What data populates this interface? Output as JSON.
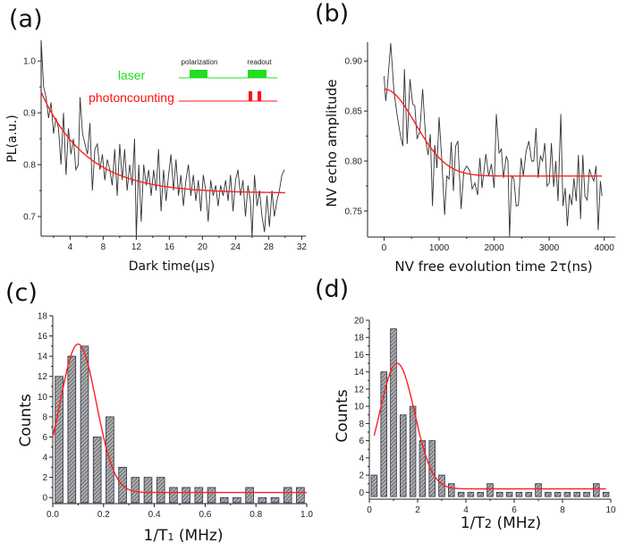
{
  "colors": {
    "data_line": "#333333",
    "fit_line": "#ff2020",
    "laser": "#22dd22",
    "photoncounting": "#ff1010",
    "bar_fill": "#8a8a8a",
    "bar_edge": "#2a3050"
  },
  "chart_data": [
    {
      "panel_label": "(a)",
      "type": "line",
      "xlabel": "Dark time(μs)",
      "ylabel": "PL(a.u.)",
      "xlim": [
        0.5,
        32.5
      ],
      "ylim": [
        0.662,
        1.04
      ],
      "xticks": [
        4,
        8,
        12,
        16,
        20,
        24,
        28,
        32
      ],
      "yticks": [
        0.7,
        0.8,
        0.9,
        1.0
      ],
      "ytick_labels": [
        "0.7",
        "0.8",
        "0.9",
        "1.0"
      ],
      "grid": false,
      "inset": {
        "laser_label": "laser",
        "photoncounting_label": "photoncounting",
        "polarization_label": "polarization",
        "readout_label": "readout"
      },
      "fit": {
        "model": "exponential decay",
        "offset": 0.745,
        "amplitude": 0.195,
        "x0": 0.5,
        "tau": 5.5,
        "x_range": [
          0.5,
          30
        ]
      },
      "series": [
        {
          "points": [
            [
              0.5,
              1.04
            ],
            [
              0.8,
              0.95
            ],
            [
              1.1,
              0.93
            ],
            [
              1.4,
              0.89
            ],
            [
              1.7,
              0.92
            ],
            [
              2.0,
              0.86
            ],
            [
              2.3,
              0.89
            ],
            [
              2.6,
              0.87
            ],
            [
              2.9,
              0.8
            ],
            [
              3.2,
              0.9
            ],
            [
              3.5,
              0.78
            ],
            [
              3.8,
              0.87
            ],
            [
              4.1,
              0.82
            ],
            [
              4.4,
              0.85
            ],
            [
              4.7,
              0.79
            ],
            [
              5.0,
              0.8
            ],
            [
              5.2,
              0.93
            ],
            [
              5.5,
              0.86
            ],
            [
              5.8,
              0.84
            ],
            [
              6.1,
              0.82
            ],
            [
              6.4,
              0.88
            ],
            [
              6.7,
              0.75
            ],
            [
              7.0,
              0.83
            ],
            [
              7.3,
              0.84
            ],
            [
              7.6,
              0.79
            ],
            [
              7.9,
              0.82
            ],
            [
              8.2,
              0.77
            ],
            [
              8.5,
              0.81
            ],
            [
              8.8,
              0.79
            ],
            [
              9.1,
              0.76
            ],
            [
              9.4,
              0.83
            ],
            [
              9.7,
              0.74
            ],
            [
              10.0,
              0.84
            ],
            [
              10.3,
              0.77
            ],
            [
              10.6,
              0.83
            ],
            [
              10.9,
              0.75
            ],
            [
              11.2,
              0.8
            ],
            [
              11.5,
              0.76
            ],
            [
              11.8,
              0.85
            ],
            [
              12.0,
              0.66
            ],
            [
              12.3,
              0.8
            ],
            [
              12.6,
              0.69
            ],
            [
              12.9,
              0.8
            ],
            [
              13.2,
              0.76
            ],
            [
              13.5,
              0.79
            ],
            [
              13.8,
              0.74
            ],
            [
              14.1,
              0.79
            ],
            [
              14.4,
              0.75
            ],
            [
              14.7,
              0.83
            ],
            [
              15.0,
              0.71
            ],
            [
              15.3,
              0.79
            ],
            [
              15.6,
              0.73
            ],
            [
              15.9,
              0.78
            ],
            [
              16.2,
              0.82
            ],
            [
              16.5,
              0.75
            ],
            [
              16.8,
              0.81
            ],
            [
              17.1,
              0.74
            ],
            [
              17.4,
              0.78
            ],
            [
              17.7,
              0.72
            ],
            [
              18.0,
              0.77
            ],
            [
              18.3,
              0.8
            ],
            [
              18.6,
              0.74
            ],
            [
              18.9,
              0.78
            ],
            [
              19.2,
              0.73
            ],
            [
              19.5,
              0.77
            ],
            [
              19.8,
              0.71
            ],
            [
              20.1,
              0.78
            ],
            [
              20.4,
              0.75
            ],
            [
              20.7,
              0.69
            ],
            [
              21.0,
              0.77
            ],
            [
              21.3,
              0.74
            ],
            [
              21.6,
              0.76
            ],
            [
              21.9,
              0.72
            ],
            [
              22.2,
              0.76
            ],
            [
              22.5,
              0.74
            ],
            [
              22.8,
              0.77
            ],
            [
              23.1,
              0.73
            ],
            [
              23.4,
              0.78
            ],
            [
              23.7,
              0.71
            ],
            [
              24.0,
              0.77
            ],
            [
              24.3,
              0.79
            ],
            [
              24.6,
              0.74
            ],
            [
              24.9,
              0.77
            ],
            [
              25.2,
              0.7
            ],
            [
              25.5,
              0.76
            ],
            [
              25.8,
              0.73
            ],
            [
              26.0,
              0.66
            ],
            [
              26.3,
              0.78
            ],
            [
              26.6,
              0.72
            ],
            [
              26.9,
              0.75
            ],
            [
              27.2,
              0.7
            ],
            [
              27.5,
              0.67
            ],
            [
              27.8,
              0.74
            ],
            [
              28.1,
              0.68
            ],
            [
              28.4,
              0.75
            ],
            [
              28.7,
              0.7
            ],
            [
              29.0,
              0.73
            ],
            [
              29.3,
              0.75
            ],
            [
              29.6,
              0.78
            ],
            [
              29.9,
              0.79
            ]
          ]
        }
      ]
    },
    {
      "panel_label": "(b)",
      "type": "line",
      "xlabel": "NV free evolution time 2τ(ns)",
      "ylabel": "NV echo amplitude",
      "xlim": [
        -300,
        4200
      ],
      "ylim": [
        0.724,
        0.919
      ],
      "xticks": [
        0,
        1000,
        2000,
        3000,
        4000
      ],
      "yticks": [
        0.75,
        0.8,
        0.85,
        0.9
      ],
      "ytick_labels": [
        "0.75",
        "0.80",
        "0.85",
        "0.90"
      ],
      "grid": false,
      "fit": {
        "model": "gaussian decay",
        "offset": 0.785,
        "amplitude": 0.087,
        "tau": 800,
        "x_range": [
          0,
          3960
        ]
      },
      "series": [
        {
          "points": [
            [
              0,
              0.885
            ],
            [
              30,
              0.86
            ],
            [
              60,
              0.875
            ],
            [
              120,
              0.918
            ],
            [
              180,
              0.87
            ],
            [
              240,
              0.845
            ],
            [
              300,
              0.825
            ],
            [
              340,
              0.815
            ],
            [
              370,
              0.892
            ],
            [
              420,
              0.817
            ],
            [
              470,
              0.882
            ],
            [
              520,
              0.857
            ],
            [
              560,
              0.855
            ],
            [
              600,
              0.822
            ],
            [
              650,
              0.83
            ],
            [
              700,
              0.872
            ],
            [
              760,
              0.82
            ],
            [
              800,
              0.806
            ],
            [
              840,
              0.827
            ],
            [
              880,
              0.755
            ],
            [
              920,
              0.816
            ],
            [
              960,
              0.793
            ],
            [
              1000,
              0.844
            ],
            [
              1050,
              0.8
            ],
            [
              1100,
              0.746
            ],
            [
              1140,
              0.785
            ],
            [
              1180,
              0.782
            ],
            [
              1220,
              0.819
            ],
            [
              1260,
              0.77
            ],
            [
              1300,
              0.815
            ],
            [
              1340,
              0.82
            ],
            [
              1400,
              0.752
            ],
            [
              1450,
              0.79
            ],
            [
              1500,
              0.795
            ],
            [
              1560,
              0.79
            ],
            [
              1600,
              0.772
            ],
            [
              1650,
              0.778
            ],
            [
              1700,
              0.766
            ],
            [
              1740,
              0.803
            ],
            [
              1780,
              0.773
            ],
            [
              1850,
              0.807
            ],
            [
              1900,
              0.785
            ],
            [
              1950,
              0.797
            ],
            [
              2000,
              0.773
            ],
            [
              2040,
              0.847
            ],
            [
              2090,
              0.808
            ],
            [
              2130,
              0.812
            ],
            [
              2170,
              0.783
            ],
            [
              2220,
              0.805
            ],
            [
              2250,
              0.8
            ],
            [
              2280,
              0.724
            ],
            [
              2320,
              0.785
            ],
            [
              2360,
              0.782
            ],
            [
              2400,
              0.755
            ],
            [
              2440,
              0.756
            ],
            [
              2490,
              0.803
            ],
            [
              2530,
              0.785
            ],
            [
              2580,
              0.81
            ],
            [
              2630,
              0.82
            ],
            [
              2680,
              0.8
            ],
            [
              2720,
              0.8
            ],
            [
              2760,
              0.833
            ],
            [
              2800,
              0.783
            ],
            [
              2840,
              0.805
            ],
            [
              2880,
              0.8
            ],
            [
              2920,
              0.818
            ],
            [
              2960,
              0.775
            ],
            [
              3000,
              0.778
            ],
            [
              3040,
              0.818
            ],
            [
              3080,
              0.774
            ],
            [
              3120,
              0.8
            ],
            [
              3160,
              0.76
            ],
            [
              3210,
              0.847
            ],
            [
              3250,
              0.755
            ],
            [
              3290,
              0.773
            ],
            [
              3330,
              0.735
            ],
            [
              3370,
              0.767
            ],
            [
              3410,
              0.756
            ],
            [
              3450,
              0.783
            ],
            [
              3490,
              0.76
            ],
            [
              3530,
              0.806
            ],
            [
              3570,
              0.742
            ],
            [
              3610,
              0.806
            ],
            [
              3650,
              0.765
            ],
            [
              3690,
              0.761
            ],
            [
              3730,
              0.792
            ],
            [
              3770,
              0.785
            ],
            [
              3810,
              0.78
            ],
            [
              3850,
              0.795
            ],
            [
              3890,
              0.731
            ],
            [
              3930,
              0.78
            ],
            [
              3960,
              0.765
            ]
          ]
        }
      ]
    },
    {
      "panel_label": "(c)",
      "type": "bar",
      "xlabel_main": "1/T",
      "xlabel_sub": "1",
      "xlabel_unit": " (MHz)",
      "ylabel": "Counts",
      "xlim": [
        0,
        1.0
      ],
      "ylim": [
        -0.6,
        18
      ],
      "xticks": [
        0.0,
        0.2,
        0.4,
        0.6,
        0.8,
        1.0
      ],
      "xtick_labels": [
        "0.0",
        "0.2",
        "0.4",
        "0.6",
        "0.8",
        "1.0"
      ],
      "yticks": [
        0,
        2,
        4,
        6,
        8,
        10,
        12,
        14,
        16,
        18
      ],
      "grid": false,
      "bin_width": 0.05,
      "bin_centers": [
        0.025,
        0.075,
        0.125,
        0.175,
        0.225,
        0.275,
        0.325,
        0.375,
        0.425,
        0.475,
        0.525,
        0.575,
        0.625,
        0.675,
        0.725,
        0.775,
        0.825,
        0.875,
        0.925,
        0.975
      ],
      "values": [
        12,
        14,
        15,
        6,
        8,
        3,
        2,
        2,
        2,
        1,
        1,
        1,
        1,
        0,
        0,
        1,
        0,
        0,
        1,
        1
      ],
      "fit": {
        "model": "gaussian",
        "center": 0.1,
        "sigma": 0.0713,
        "amplitude": 14.7,
        "offset": 0.5,
        "x_range": [
          0,
          1.0
        ]
      }
    },
    {
      "panel_label": "(d)",
      "type": "bar",
      "xlabel_main": "1/T",
      "xlabel_sub": "2",
      "xlabel_unit": " (MHz)",
      "ylabel": "Counts",
      "xlim": [
        0,
        10
      ],
      "ylim": [
        -0.8,
        20
      ],
      "xticks": [
        0,
        2,
        4,
        6,
        8,
        10
      ],
      "yticks": [
        0,
        2,
        4,
        6,
        8,
        10,
        12,
        14,
        16,
        18,
        20
      ],
      "grid": false,
      "bin_width": 0.4,
      "bin_centers": [
        0.2,
        0.6,
        1.0,
        1.4,
        1.8,
        2.2,
        2.6,
        3.0,
        3.4,
        3.8,
        4.2,
        4.6,
        5.0,
        5.4,
        5.8,
        6.2,
        6.6,
        7.0,
        7.4,
        7.8,
        8.2,
        8.6,
        9.0,
        9.4,
        9.8
      ],
      "values": [
        2,
        14,
        19,
        9,
        10,
        6,
        6,
        2,
        1,
        0,
        0,
        0,
        1,
        0,
        0,
        0,
        0,
        1,
        0,
        0,
        0,
        0,
        0,
        1,
        0
      ],
      "fit": {
        "model": "gaussian",
        "center": 1.15,
        "sigma": 0.726,
        "amplitude": 14.6,
        "offset": 0.4,
        "x_range": [
          0.2,
          9.8
        ]
      }
    }
  ]
}
